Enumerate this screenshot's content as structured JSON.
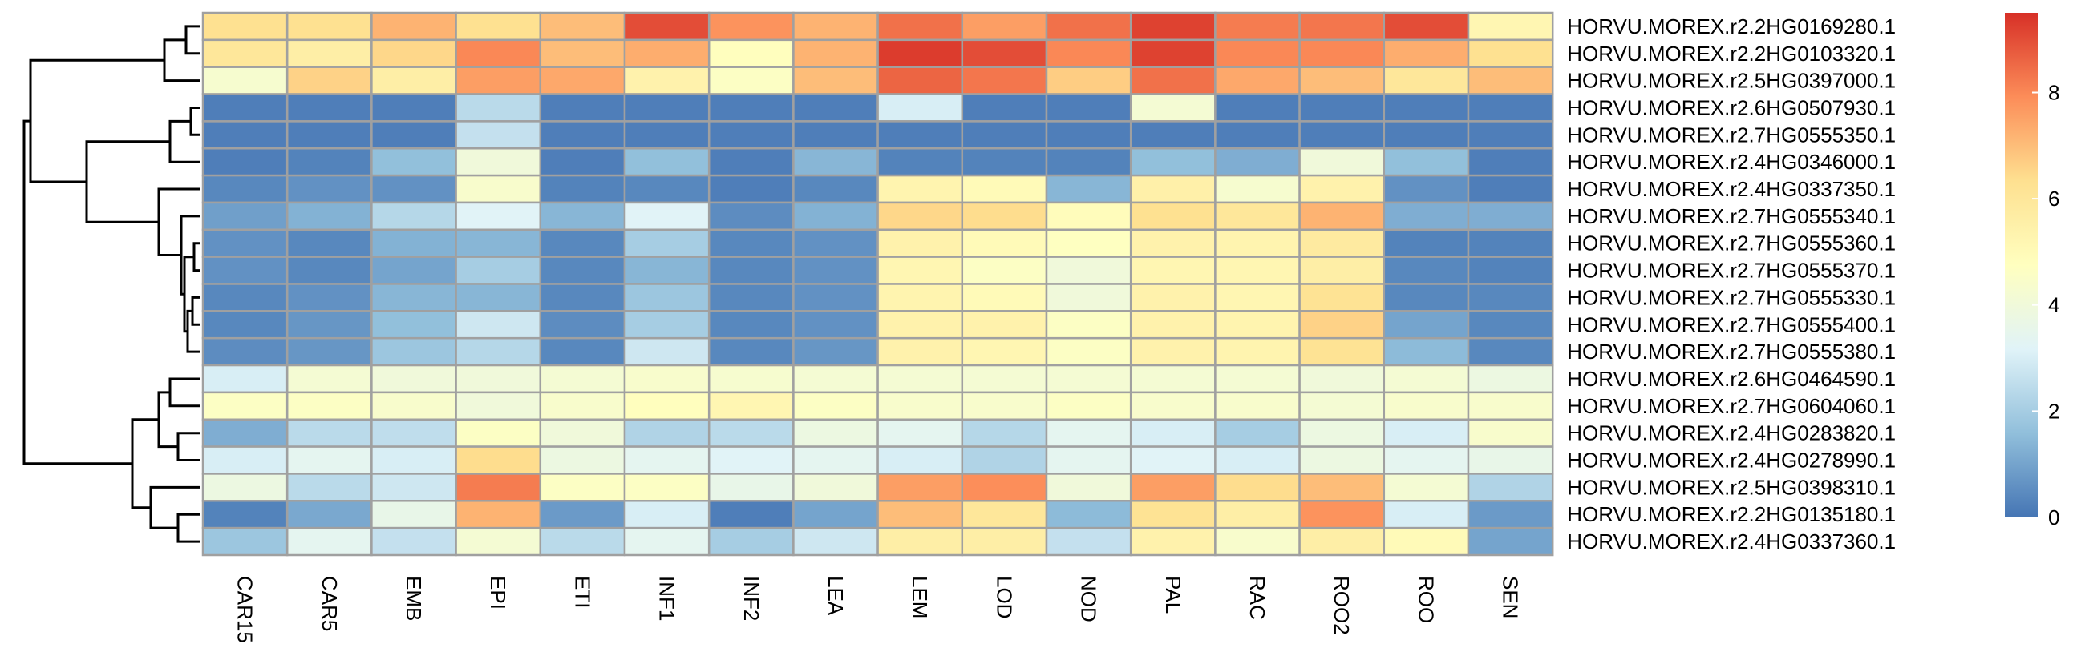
{
  "chart_data": {
    "type": "heatmap",
    "title": "",
    "xlabel": "",
    "ylabel": "",
    "columns": [
      "CAR15",
      "CAR5",
      "EMB",
      "EPI",
      "ETI",
      "INF1",
      "INF2",
      "LEA",
      "LEM",
      "LOD",
      "NOD",
      "PAL",
      "RAC",
      "ROO2",
      "ROO",
      "SEN"
    ],
    "rows": [
      "HORVU.MOREX.r2.2HG0169280.1",
      "HORVU.MOREX.r2.2HG0103320.1",
      "HORVU.MOREX.r2.5HG0397000.1",
      "HORVU.MOREX.r2.6HG0507930.1",
      "HORVU.MOREX.r2.7HG0555350.1",
      "HORVU.MOREX.r2.4HG0346000.1",
      "HORVU.MOREX.r2.4HG0337350.1",
      "HORVU.MOREX.r2.7HG0555340.1",
      "HORVU.MOREX.r2.7HG0555360.1",
      "HORVU.MOREX.r2.7HG0555370.1",
      "HORVU.MOREX.r2.7HG0555330.1",
      "HORVU.MOREX.r2.7HG0555400.1",
      "HORVU.MOREX.r2.7HG0555380.1",
      "HORVU.MOREX.r2.6HG0464590.1",
      "HORVU.MOREX.r2.7HG0604060.1",
      "HORVU.MOREX.r2.4HG0283820.1",
      "HORVU.MOREX.r2.4HG0278990.1",
      "HORVU.MOREX.r2.5HG0398310.1",
      "HORVU.MOREX.r2.2HG0135180.1",
      "HORVU.MOREX.r2.4HG0337360.1"
    ],
    "values": [
      [
        6.3,
        6.3,
        7.2,
        6.3,
        7.0,
        9.0,
        7.8,
        7.2,
        8.4,
        7.6,
        8.4,
        9.2,
        8.2,
        8.3,
        9.0,
        5.2
      ],
      [
        6.0,
        5.6,
        6.5,
        8.0,
        7.0,
        7.3,
        4.8,
        7.2,
        9.3,
        9.0,
        8.0,
        9.2,
        8.0,
        8.0,
        7.3,
        6.3
      ],
      [
        4.3,
        6.6,
        5.6,
        7.6,
        7.4,
        5.4,
        4.6,
        7.0,
        8.6,
        8.3,
        6.7,
        8.4,
        7.4,
        7.0,
        6.0,
        7.0
      ],
      [
        0.2,
        0.2,
        0.2,
        2.4,
        0.2,
        0.2,
        0.2,
        0.2,
        3.0,
        0.2,
        0.2,
        4.2,
        0.2,
        0.2,
        0.2,
        0.2
      ],
      [
        0.2,
        0.2,
        0.2,
        2.6,
        0.2,
        0.2,
        0.2,
        0.2,
        0.2,
        0.2,
        0.2,
        0.2,
        0.2,
        0.2,
        0.2,
        0.2
      ],
      [
        0.2,
        0.3,
        1.6,
        4.0,
        0.2,
        1.6,
        0.2,
        1.4,
        0.3,
        0.3,
        0.3,
        1.6,
        1.2,
        4.0,
        1.6,
        0.2
      ],
      [
        0.4,
        0.6,
        0.6,
        4.4,
        0.3,
        0.4,
        0.2,
        0.4,
        5.3,
        5.0,
        1.4,
        5.5,
        4.3,
        5.4,
        0.6,
        0.2
      ],
      [
        0.9,
        1.3,
        2.3,
        3.2,
        1.4,
        3.2,
        0.5,
        1.3,
        6.5,
        6.4,
        4.9,
        6.3,
        6.0,
        7.2,
        1.2,
        1.2
      ],
      [
        0.6,
        0.4,
        1.3,
        1.4,
        0.4,
        2.0,
        0.4,
        0.6,
        5.4,
        5.0,
        4.7,
        5.4,
        5.3,
        5.8,
        0.3,
        0.3
      ],
      [
        0.6,
        0.4,
        1.0,
        2.0,
        0.4,
        1.4,
        0.4,
        0.6,
        5.2,
        4.6,
        4.0,
        5.2,
        5.2,
        5.6,
        0.4,
        0.3
      ],
      [
        0.4,
        0.6,
        1.4,
        1.4,
        0.4,
        1.8,
        0.4,
        0.6,
        5.3,
        5.0,
        4.0,
        5.4,
        5.2,
        6.2,
        0.4,
        0.4
      ],
      [
        0.4,
        0.7,
        1.6,
        2.8,
        0.5,
        2.0,
        0.4,
        0.6,
        5.4,
        5.4,
        4.6,
        5.4,
        5.3,
        6.6,
        1.0,
        0.4
      ],
      [
        0.5,
        0.7,
        1.8,
        2.3,
        0.4,
        2.8,
        0.4,
        0.7,
        5.4,
        5.2,
        4.6,
        5.4,
        5.3,
        6.2,
        1.5,
        0.4
      ],
      [
        3.0,
        4.2,
        4.0,
        4.0,
        4.2,
        4.4,
        4.3,
        4.2,
        4.2,
        4.2,
        4.2,
        4.2,
        4.2,
        4.0,
        4.2,
        3.8
      ],
      [
        4.6,
        4.6,
        4.4,
        4.0,
        4.4,
        4.8,
        5.2,
        4.6,
        4.4,
        4.4,
        4.6,
        4.4,
        4.4,
        4.2,
        4.4,
        4.4
      ],
      [
        1.2,
        2.4,
        2.5,
        4.6,
        4.0,
        2.2,
        2.4,
        3.8,
        3.4,
        2.3,
        3.4,
        3.0,
        2.0,
        3.8,
        3.0,
        4.4
      ],
      [
        3.0,
        3.4,
        3.0,
        6.4,
        3.8,
        3.4,
        3.2,
        3.4,
        3.0,
        2.2,
        3.4,
        3.2,
        3.0,
        3.8,
        3.4,
        3.6
      ],
      [
        3.8,
        2.4,
        2.8,
        8.2,
        4.6,
        4.6,
        3.6,
        4.0,
        7.6,
        7.9,
        4.0,
        7.6,
        6.4,
        7.0,
        4.2,
        2.2
      ],
      [
        0.3,
        1.1,
        3.6,
        7.2,
        0.8,
        3.0,
        0.2,
        1.0,
        7.0,
        6.0,
        1.5,
        6.2,
        5.6,
        7.8,
        3.0,
        0.8
      ],
      [
        1.8,
        3.4,
        2.6,
        4.2,
        2.4,
        3.4,
        2.0,
        2.8,
        5.6,
        5.6,
        2.6,
        5.4,
        4.4,
        5.6,
        5.0,
        1.0
      ]
    ],
    "color_scale": {
      "type": "diverging",
      "min": 0,
      "max": 9.5,
      "colors": [
        "#4575b4",
        "#91bfdb",
        "#e0f3f8",
        "#ffffbf",
        "#fee090",
        "#fc8d59",
        "#d73027"
      ],
      "legend_ticks": [
        0,
        2,
        4,
        6,
        8
      ]
    },
    "row_dendrogram": true,
    "cell_border_color": "#a0a0a0",
    "legend_position": "right"
  }
}
